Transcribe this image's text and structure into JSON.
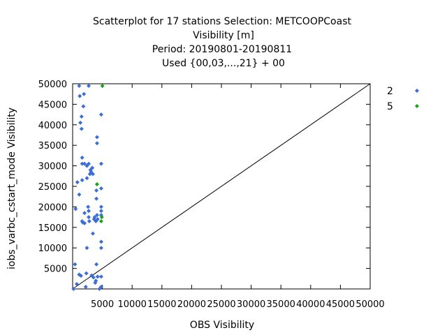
{
  "chart_data": {
    "type": "scatter",
    "title_lines": [
      "Scatterplot for   17 stations Selection: METCOOPCoast",
      "Visibility [m]",
      "Period: 20190801-20190811",
      "Used {00,03,...,21} + 00"
    ],
    "xlabel": "OBS Visibility",
    "ylabel": "iobs_varbc_cstart_mode Visibility",
    "xlim": [
      0,
      50000
    ],
    "ylim": [
      0,
      50000
    ],
    "x_ticks": [
      5000,
      10000,
      15000,
      20000,
      25000,
      30000,
      35000,
      40000,
      45000,
      50000
    ],
    "x_tick_labels": [
      "5000",
      "10000",
      "15000",
      "20000",
      "25000",
      "30000",
      "35000",
      "40000",
      "45000",
      "50000"
    ],
    "y_ticks": [
      5000,
      10000,
      15000,
      20000,
      25000,
      30000,
      35000,
      40000,
      45000,
      50000
    ],
    "y_tick_labels": [
      "5000",
      "10000",
      "15000",
      "20000",
      "25000",
      "30000",
      "35000",
      "40000",
      "45000",
      "50000"
    ],
    "grid": false,
    "diagonal_line": true,
    "legend_position": "right",
    "series": [
      {
        "name": "2",
        "color": "#3b6fd6",
        "points": [
          [
            150,
            0
          ],
          [
            400,
            6000
          ],
          [
            500,
            19500
          ],
          [
            700,
            1200
          ],
          [
            800,
            26000
          ],
          [
            1100,
            49500
          ],
          [
            1100,
            23000
          ],
          [
            1100,
            3500
          ],
          [
            1200,
            47000
          ],
          [
            1300,
            40500
          ],
          [
            1400,
            3200
          ],
          [
            1500,
            42000
          ],
          [
            1500,
            39000
          ],
          [
            1600,
            32000
          ],
          [
            1600,
            30500
          ],
          [
            1600,
            26500
          ],
          [
            1600,
            16500
          ],
          [
            1700,
            16200
          ],
          [
            1800,
            44500
          ],
          [
            1900,
            47500
          ],
          [
            2000,
            30500
          ],
          [
            2000,
            18500
          ],
          [
            2000,
            16000
          ],
          [
            2200,
            500
          ],
          [
            2300,
            3800
          ],
          [
            2400,
            30000
          ],
          [
            2400,
            27000
          ],
          [
            2400,
            10000
          ],
          [
            2600,
            20000
          ],
          [
            2700,
            49500
          ],
          [
            2700,
            30500
          ],
          [
            2700,
            19000
          ],
          [
            2700,
            17500
          ],
          [
            2800,
            16500
          ],
          [
            2900,
            28000
          ],
          [
            3000,
            29000
          ],
          [
            3100,
            28500
          ],
          [
            3200,
            3300
          ],
          [
            3300,
            29500
          ],
          [
            3400,
            28000
          ],
          [
            3400,
            13500
          ],
          [
            3500,
            2800
          ],
          [
            3600,
            17000
          ],
          [
            3700,
            17500
          ],
          [
            3800,
            1500
          ],
          [
            3900,
            2000
          ],
          [
            3900,
            16500
          ],
          [
            4000,
            24000
          ],
          [
            4000,
            22000
          ],
          [
            4000,
            6000
          ],
          [
            4100,
            37000
          ],
          [
            4100,
            35500
          ],
          [
            4100,
            18000
          ],
          [
            4200,
            17000
          ],
          [
            4200,
            3000
          ],
          [
            4800,
            42500
          ],
          [
            4800,
            30500
          ],
          [
            4800,
            24500
          ],
          [
            4800,
            20000
          ],
          [
            4800,
            19000
          ],
          [
            4800,
            18000
          ],
          [
            4800,
            11500
          ],
          [
            4800,
            10000
          ],
          [
            4800,
            3000
          ],
          [
            4800,
            500
          ],
          [
            4500,
            0
          ]
        ]
      },
      {
        "name": "5",
        "color": "#1aa31a",
        "points": [
          [
            5000,
            49500
          ],
          [
            4100,
            25500
          ],
          [
            4800,
            16500
          ],
          [
            4900,
            17500
          ]
        ]
      }
    ]
  }
}
